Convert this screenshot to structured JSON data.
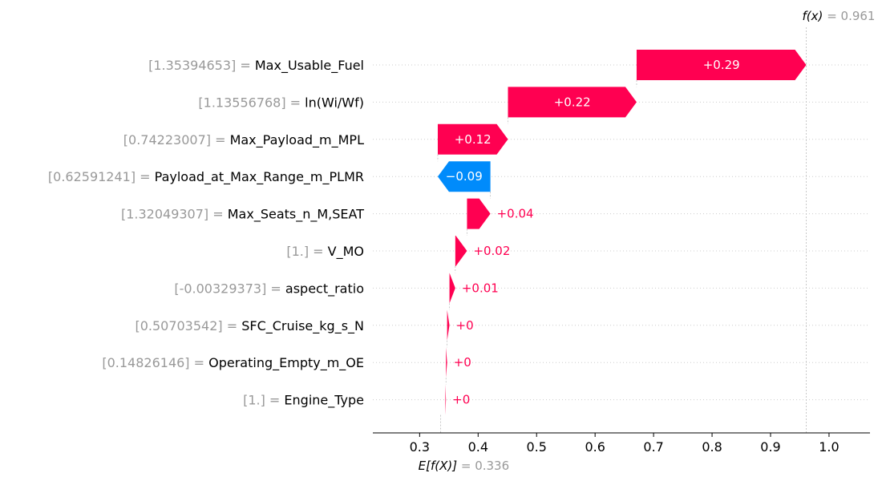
{
  "colors": {
    "positive": "#ff0051",
    "negative": "#008bfb",
    "value_text": "#999999",
    "axis": "#000000",
    "label": "#000000",
    "gridline": "#cccccc"
  },
  "chart_data": {
    "type": "bar",
    "subtype": "waterfall",
    "base_value": 0.336,
    "output_value": 0.961,
    "base_label": "E[f(X)]",
    "output_label": "f(x)",
    "base_value_text": "0.336",
    "output_value_text": "0.961",
    "xlim": [
      0.22,
      1.07
    ],
    "x_ticks": [
      0.3,
      0.4,
      0.5,
      0.6,
      0.7,
      0.8,
      0.9,
      1.0
    ],
    "x_tick_labels": [
      "0.3",
      "0.4",
      "0.5",
      "0.6",
      "0.7",
      "0.8",
      "0.9",
      "1.0"
    ],
    "features": [
      {
        "feature_value": "[1.35394653]",
        "name": "Max_Usable_Fuel",
        "contribution": 0.29,
        "label": "+0.29"
      },
      {
        "feature_value": "[1.13556768]",
        "name": "ln(Wi/Wf)",
        "contribution": 0.22,
        "label": "+0.22"
      },
      {
        "feature_value": "[0.74223007]",
        "name": "Max_Payload_m_MPL",
        "contribution": 0.12,
        "label": "+0.12"
      },
      {
        "feature_value": "[0.62591241]",
        "name": "Payload_at_Max_Range_m_PLMR",
        "contribution": -0.09,
        "label": "−0.09"
      },
      {
        "feature_value": "[1.32049307]",
        "name": "Max_Seats_n_M,SEAT",
        "contribution": 0.04,
        "label": "+0.04"
      },
      {
        "feature_value": "[1.]",
        "name": "V_MO",
        "contribution": 0.02,
        "label": "+0.02"
      },
      {
        "feature_value": "[-0.00329373]",
        "name": "aspect_ratio",
        "contribution": 0.01,
        "label": "+0.01"
      },
      {
        "feature_value": "[0.50703542]",
        "name": "SFC_Cruise_kg_s_N",
        "contribution": 0.004,
        "label": "+0"
      },
      {
        "feature_value": "[0.14826146]",
        "name": "Operating_Empty_m_OE",
        "contribution": 0.002,
        "label": "+0"
      },
      {
        "feature_value": "[1.]",
        "name": "Engine_Type",
        "contribution": 0.001,
        "label": "+0"
      }
    ]
  }
}
